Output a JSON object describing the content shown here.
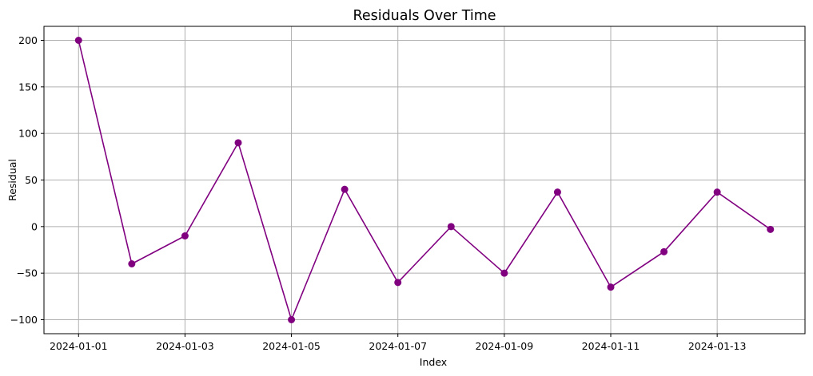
{
  "chart_data": {
    "type": "line",
    "title": "Residuals Over Time",
    "xlabel": "Index",
    "ylabel": "Residual",
    "x": [
      "2024-01-01",
      "2024-01-02",
      "2024-01-03",
      "2024-01-04",
      "2024-01-05",
      "2024-01-06",
      "2024-01-07",
      "2024-01-08",
      "2024-01-09",
      "2024-01-10",
      "2024-01-11",
      "2024-01-12",
      "2024-01-13",
      "2024-01-14"
    ],
    "series": [
      {
        "name": "Residual",
        "color": "#800080",
        "marker": "circle",
        "values": [
          200,
          -40,
          -10,
          90,
          -100,
          40,
          -60,
          0,
          -50,
          37,
          -65,
          -27,
          37,
          -3
        ]
      }
    ],
    "xticks": [
      "2024-01-01",
      "2024-01-03",
      "2024-01-05",
      "2024-01-07",
      "2024-01-09",
      "2024-01-11",
      "2024-01-13"
    ],
    "yticks": [
      -100,
      -50,
      0,
      50,
      100,
      150,
      200
    ],
    "ytick_labels": [
      "−100",
      "−50",
      "0",
      "50",
      "100",
      "150",
      "200"
    ],
    "xlim": [
      "2023-12-31T12:36",
      "2024-01-14T11:24"
    ],
    "ylim": [
      -115,
      215
    ],
    "grid": true
  }
}
